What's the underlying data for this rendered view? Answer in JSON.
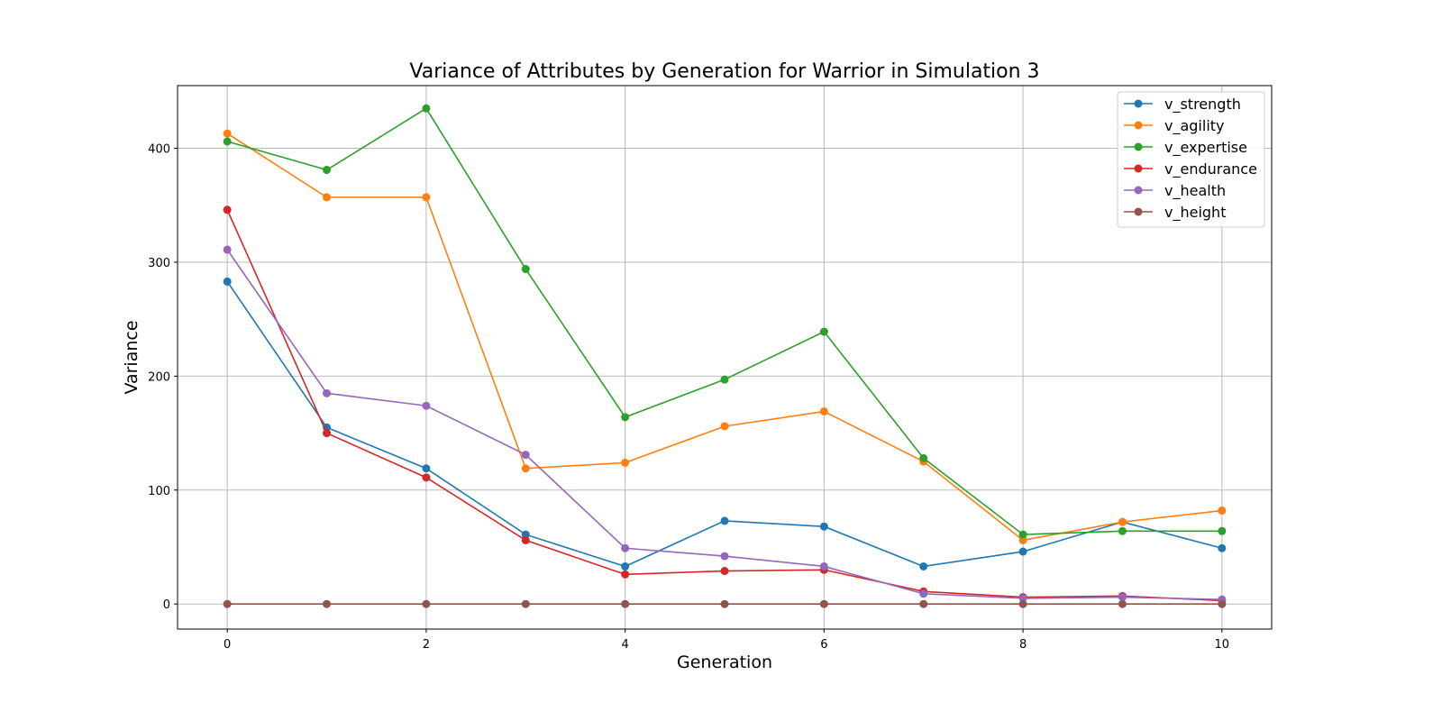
{
  "chart_data": {
    "type": "line",
    "title": "Variance of Attributes by Generation for Warrior in Simulation 3",
    "xlabel": "Generation",
    "ylabel": "Variance",
    "x": [
      0,
      1,
      2,
      3,
      4,
      5,
      6,
      7,
      8,
      9,
      10
    ],
    "xlim": [
      -0.5,
      10.5
    ],
    "ylim": [
      -22,
      455
    ],
    "xticks": [
      0,
      2,
      4,
      6,
      8,
      10
    ],
    "yticks": [
      0,
      100,
      200,
      300,
      400
    ],
    "grid": true,
    "legend_position": "top-right",
    "series": [
      {
        "name": "v_strength",
        "color": "#1f77b4",
        "values": [
          283,
          155,
          119,
          61,
          33,
          73,
          68,
          33,
          46,
          72,
          49
        ]
      },
      {
        "name": "v_agility",
        "color": "#ff7f0e",
        "values": [
          413,
          357,
          357,
          119,
          124,
          156,
          169,
          125,
          56,
          72,
          82
        ]
      },
      {
        "name": "v_expertise",
        "color": "#2ca02c",
        "values": [
          406,
          381,
          435,
          294,
          164,
          197,
          239,
          128,
          61,
          64,
          64
        ]
      },
      {
        "name": "v_endurance",
        "color": "#d62728",
        "values": [
          346,
          150,
          111,
          56,
          26,
          29,
          30,
          11,
          6,
          7,
          3
        ]
      },
      {
        "name": "v_health",
        "color": "#9467bd",
        "values": [
          311,
          185,
          174,
          131,
          49,
          42,
          33,
          9,
          5,
          6,
          4
        ]
      },
      {
        "name": "v_height",
        "color": "#8c564b",
        "values": [
          0,
          0,
          0,
          0,
          0,
          0,
          0,
          0,
          0,
          0,
          0
        ]
      }
    ]
  }
}
